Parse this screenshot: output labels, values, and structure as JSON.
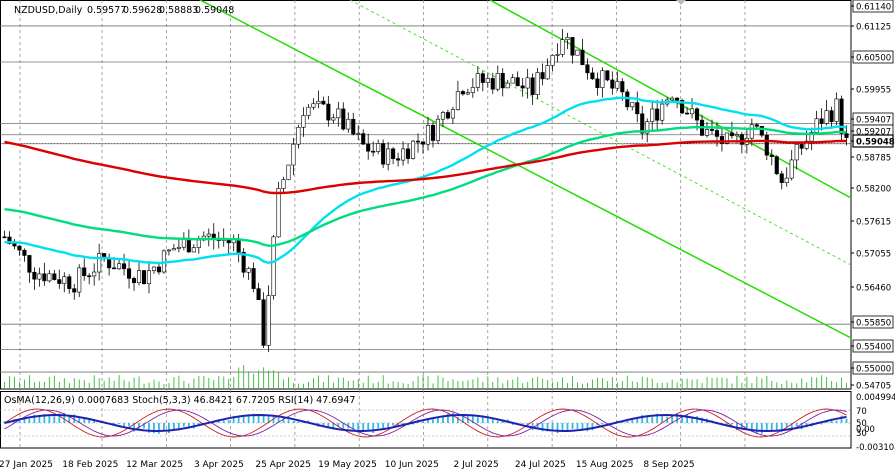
{
  "chart_data": {
    "type": "candlestick",
    "symbol_label": "NZDUSD,Daily",
    "ohlc_readout": {
      "open": "0.59577",
      "high": "0.59628",
      "low": "0.58883",
      "close": "0.59048"
    },
    "oscillator_label": "OsMA(12,26,9) 0.0007683  Stoch(5,3,3) 46.8421 67.7205  RSI(14) 47.6947",
    "x_ticks": [
      "27 Jan 2025",
      "18 Feb 2025",
      "12 Mar 2025",
      "3 Apr 2025",
      "25 Apr 2025",
      "19 May 2025",
      "10 Jun 2025",
      "2 Jul 2025",
      "24 Jul 2025",
      "15 Aug 2025",
      "8 Sep 2025"
    ],
    "y_ticks": [
      "0.61140",
      "0.61125",
      "0.60500",
      "0.59955",
      "0.59407",
      "0.59207",
      "0.59048",
      "0.58785",
      "0.58200",
      "0.57615",
      "0.57055",
      "0.56460",
      "0.55850",
      "0.55400",
      "0.55000",
      "0.54705"
    ],
    "price_range": [
      0.547,
      0.616
    ],
    "horizontal_levels": [
      0.6114,
      0.605,
      0.5941,
      0.5921,
      0.5905,
      0.5585,
      0.554,
      0.55
    ],
    "osc_labels": [
      "0.004994",
      "70",
      "50",
      "30",
      "0.00",
      "-0.003104"
    ],
    "colors": {
      "ema_fast": "#00e0f0",
      "ema_mid": "#00dd80",
      "ema_slow": "#dd0000",
      "channel": "#22dd00",
      "candle": "#000000",
      "volume": "#33bb33",
      "osma": "#33b8e8",
      "stoch_main": "#2020b0",
      "stoch_signal": "#cc2020",
      "rsi": "#8020a0",
      "grid": "#808080"
    }
  }
}
